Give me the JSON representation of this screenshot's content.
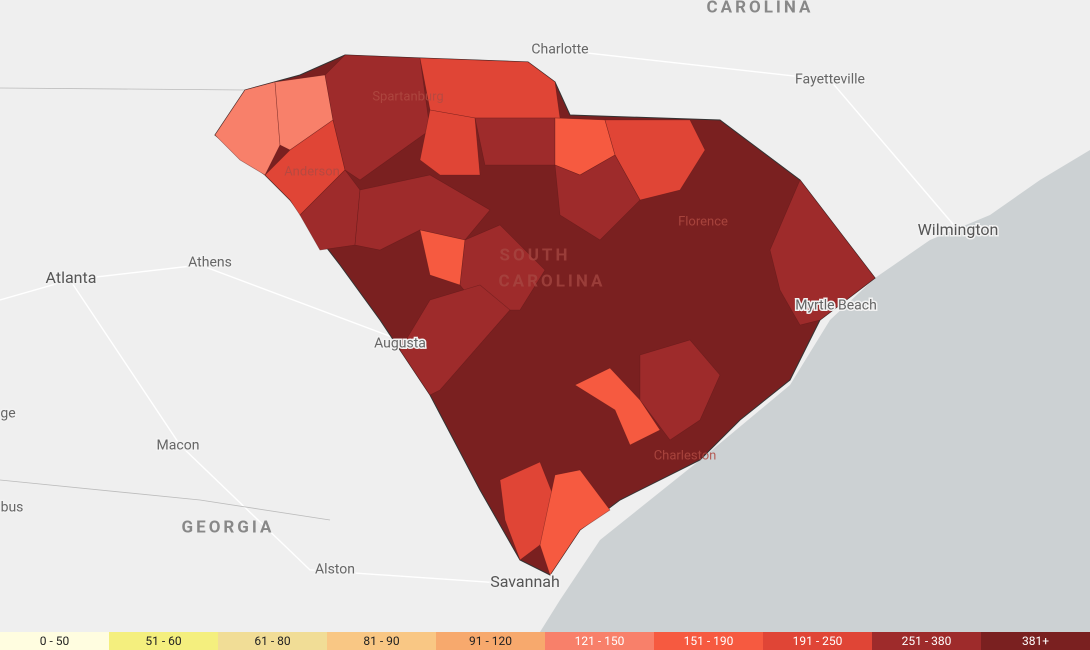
{
  "map": {
    "state_labels": [
      "CAROLINA",
      "GEORGIA"
    ],
    "overlay_labels": [
      "SOUTH",
      "CAROLINA"
    ],
    "place_labels": [
      "Charlotte",
      "Fayetteville",
      "Wilmington",
      "Atlanta",
      "Athens",
      "Augusta",
      "Myrtle Beach",
      "Macon",
      "Alston",
      "Savannah",
      "Charleston",
      "Spartanburg",
      "Anderson",
      "Florence",
      "ge",
      "bus"
    ]
  },
  "legend": {
    "items": [
      {
        "label": "0 - 50",
        "color": "#fffde0"
      },
      {
        "label": "51 - 60",
        "color": "#f4ef7e"
      },
      {
        "label": "61 - 80",
        "color": "#f1dd96"
      },
      {
        "label": "81 - 90",
        "color": "#f9c784"
      },
      {
        "label": "91 - 120",
        "color": "#f7a96d"
      },
      {
        "label": "121 - 150",
        "color": "#f8806a"
      },
      {
        "label": "151 - 190",
        "color": "#f65a40"
      },
      {
        "label": "191 - 250",
        "color": "#e04536"
      },
      {
        "label": "251 - 380",
        "color": "#9e2b2b"
      },
      {
        "label": "381+",
        "color": "#7a2020"
      }
    ]
  }
}
